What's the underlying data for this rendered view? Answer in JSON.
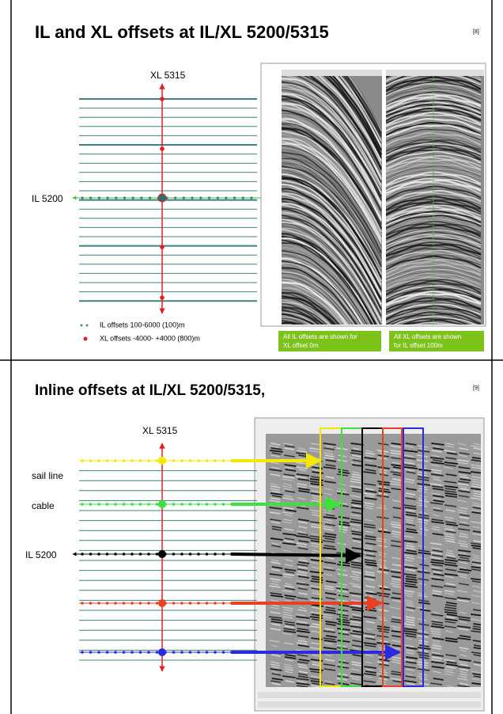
{
  "slide1": {
    "title": "IL and XL offsets at IL/XL 5200/5315",
    "page": "[8]",
    "xl_label": "XL 5315",
    "il_label": "IL 5200",
    "legend": [
      "IL offsets 100-6000 (100)m",
      "XL offsets -4000- +4000  (800)m"
    ],
    "captions": [
      [
        "All IL offsets are shown for",
        "XL offset 0m"
      ],
      [
        "All XL offsets are shown",
        "for IL offset  100m"
      ]
    ]
  },
  "slide2": {
    "title": "Inline offsets at IL/XL 5200/5315,",
    "page": "[9]",
    "xl_label": "XL 5315",
    "labels": [
      "sail line",
      "cable",
      "IL 5200"
    ]
  }
}
